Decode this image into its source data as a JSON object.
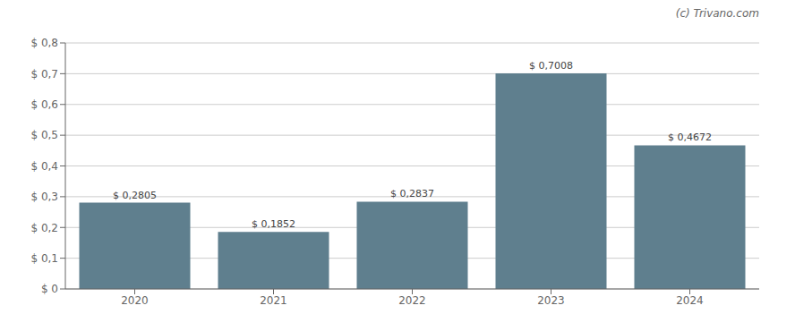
{
  "chart_data": {
    "type": "bar",
    "categories": [
      "2020",
      "2021",
      "2022",
      "2023",
      "2024"
    ],
    "values": [
      0.2805,
      0.1852,
      0.2837,
      0.7008,
      0.4672
    ],
    "value_labels": [
      "$ 0,2805",
      "$ 0,1852",
      "$ 0,2837",
      "$ 0,7008",
      "$ 0,4672"
    ],
    "color": "#5f7f8e",
    "ylim": [
      0,
      0.8
    ],
    "yticks": [
      {
        "value": 0,
        "label": "$ 0"
      },
      {
        "value": 0.1,
        "label": "$ 0,1"
      },
      {
        "value": 0.2,
        "label": "$ 0,2"
      },
      {
        "value": 0.3,
        "label": "$ 0,3"
      },
      {
        "value": 0.4,
        "label": "$ 0,4"
      },
      {
        "value": 0.5,
        "label": "$ 0,5"
      },
      {
        "value": 0.6,
        "label": "$ 0,6"
      },
      {
        "value": 0.7,
        "label": "$ 0,7"
      },
      {
        "value": 0.8,
        "label": "$ 0,8"
      }
    ],
    "grid": true,
    "data_labels": true,
    "annotations": [
      "(c) Trivano.com"
    ]
  }
}
